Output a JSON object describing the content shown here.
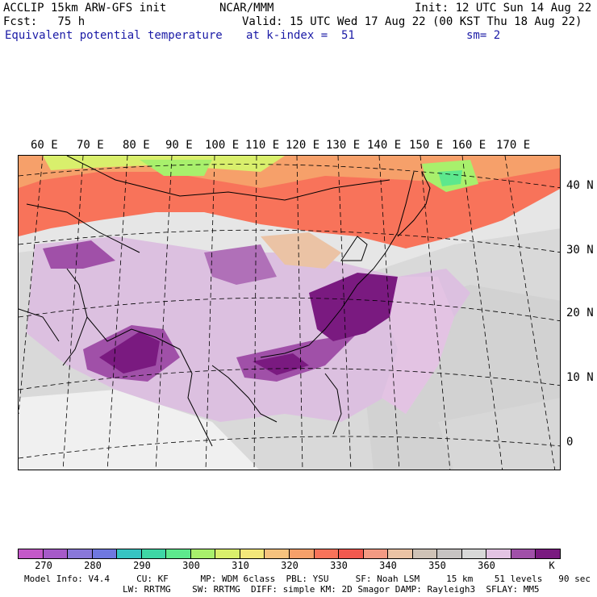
{
  "header": {
    "line1_left": "ACCLIP 15km ARW-GFS init",
    "line1_center": "NCAR/MMM",
    "line1_right": "Init: 12 UTC Sun 14 Aug 22",
    "line2_left": "Fcst:   75 h",
    "line2_right": "Valid: 15 UTC Wed 17 Aug 22 (00 KST Thu 18 Aug 22)",
    "line3_left": "Equivalent potential temperature",
    "line3_center": "at k-index =  51",
    "line3_right": "sm= 2"
  },
  "map": {
    "lon_labels": [
      "60 E",
      "70 E",
      "80 E",
      "90 E",
      "100 E",
      "110 E",
      "120 E",
      "130 E",
      "140 E",
      "150 E",
      "160 E",
      "170 E"
    ],
    "lat_labels": [
      "40 N",
      "30 N",
      "20 N",
      "10 N",
      "0"
    ]
  },
  "colorbar": {
    "colors": [
      "#c459c9",
      "#a65ac9",
      "#8978d9",
      "#6f78e0",
      "#37c4c2",
      "#3ed6a5",
      "#5de88d",
      "#a8f06c",
      "#d9ef6c",
      "#f3e77a",
      "#f6c27e",
      "#f6a06a",
      "#f8735a",
      "#f2594e",
      "#f39a83",
      "#ebc3a5",
      "#cfc2b6",
      "#c7c3c2",
      "#d8d8d8",
      "#e3c3e3",
      "#a050a8",
      "#7a1a80"
    ],
    "tick_labels": [
      "270",
      "280",
      "290",
      "300",
      "310",
      "320",
      "330",
      "340",
      "350",
      "360"
    ],
    "unit": "K"
  },
  "footer": {
    "line1": "Model Info: V4.4     CU: KF      MP: WDM 6class  PBL: YSU     SF: Noah LSM     15 km    51 levels   90 sec",
    "line2": "LW: RRTMG    SW: RRTMG  DIFF: simple KM: 2D Smagor DAMP: Rayleigh3  SFLAY: MM5"
  }
}
